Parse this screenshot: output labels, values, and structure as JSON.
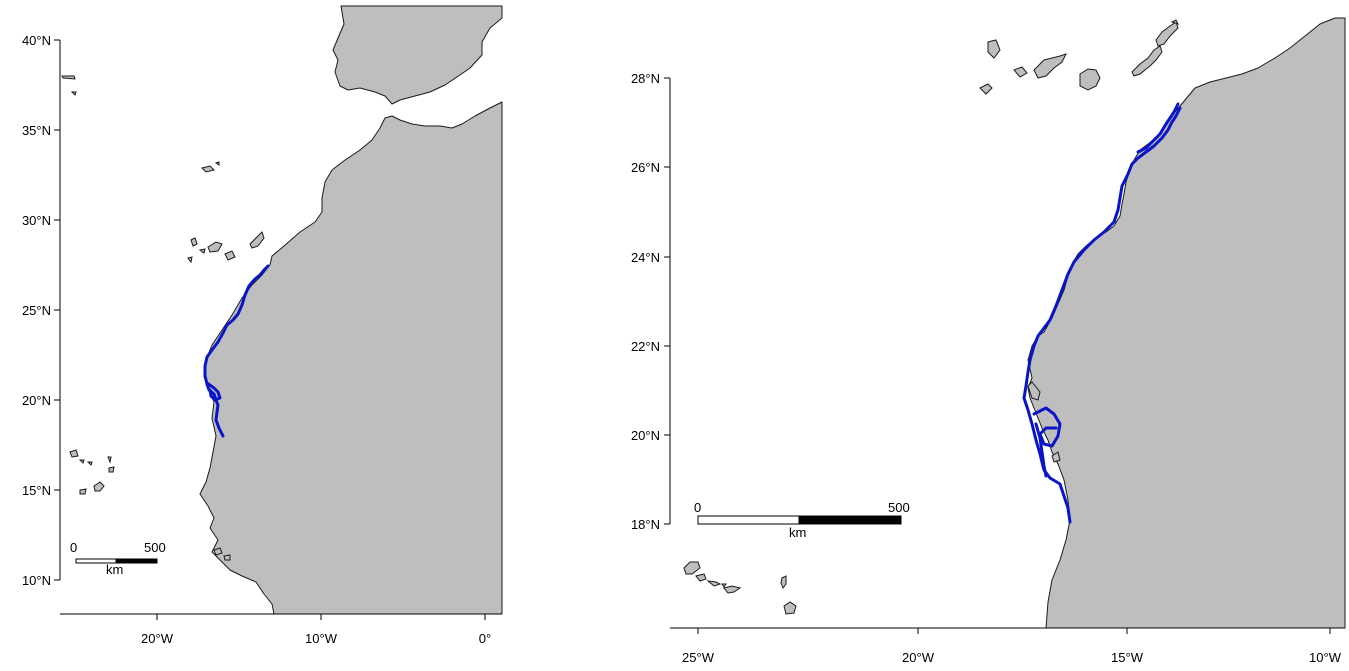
{
  "maps": [
    {
      "y_ticks": [
        "40°N",
        "35°N",
        "30°N",
        "25°N",
        "20°N",
        "15°N",
        "10°N"
      ],
      "x_ticks": [
        "20°W",
        "10°W",
        "0°"
      ],
      "scalebar": {
        "zero": "0",
        "max": "500",
        "unit": "km"
      }
    },
    {
      "y_ticks": [
        "28°N",
        "26°N",
        "24°N",
        "22°N",
        "20°N",
        "18°N"
      ],
      "x_ticks": [
        "25°W",
        "20°W",
        "15°W",
        "10°W"
      ],
      "scalebar": {
        "zero": "0",
        "max": "500",
        "unit": "km"
      }
    }
  ],
  "colors": {
    "land": "#bebebe",
    "track": "#0a14c8",
    "coast": "#1a1a1a"
  }
}
